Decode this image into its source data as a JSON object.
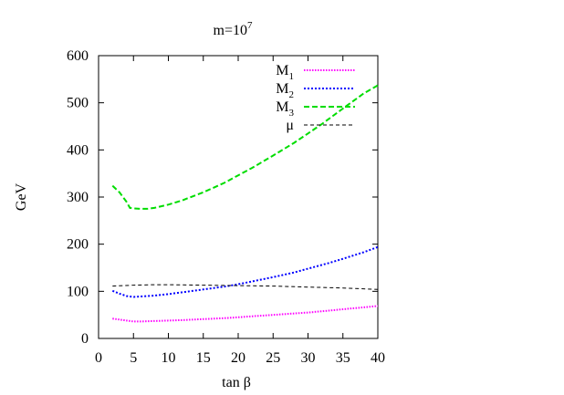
{
  "chart_data": {
    "type": "line",
    "title": {
      "text": "m=10",
      "sup": "7"
    },
    "xlabel": "tan β",
    "ylabel": "GeV",
    "xlim": [
      0,
      40
    ],
    "ylim": [
      0,
      600
    ],
    "xticks": [
      0,
      5,
      10,
      15,
      20,
      25,
      30,
      35,
      40
    ],
    "yticks": [
      0,
      100,
      200,
      300,
      400,
      500,
      600
    ],
    "grid": false,
    "legend_position": "top-right",
    "series": [
      {
        "name": "M",
        "sub": "1",
        "color": "#ff00ff",
        "dash": "dotted-fine",
        "x": [
          2,
          3,
          4,
          5,
          6,
          8,
          10,
          12,
          15,
          18,
          20,
          22,
          25,
          28,
          30,
          33,
          35,
          38,
          40
        ],
        "y": [
          42,
          40,
          38,
          36,
          36,
          37,
          38,
          39,
          41,
          43,
          45,
          47,
          50,
          53,
          55,
          59,
          62,
          66,
          69
        ]
      },
      {
        "name": "M",
        "sub": "2",
        "color": "#0000ff",
        "dash": "dotted",
        "x": [
          2,
          3,
          4,
          5,
          6,
          8,
          10,
          12,
          15,
          18,
          20,
          22,
          25,
          28,
          30,
          33,
          35,
          38,
          40
        ],
        "y": [
          101,
          95,
          90,
          88,
          89,
          91,
          94,
          98,
          104,
          110,
          115,
          121,
          130,
          140,
          148,
          160,
          169,
          183,
          194
        ]
      },
      {
        "name": "M",
        "sub": "3",
        "color": "#00dd00",
        "dash": "dashed",
        "x": [
          2,
          3,
          4,
          4.5,
          5,
          6,
          7,
          8,
          10,
          12,
          15,
          18,
          20,
          22,
          25,
          28,
          30,
          32,
          35,
          38,
          40
        ],
        "y": [
          324,
          310,
          290,
          277,
          276,
          275,
          275,
          277,
          284,
          293,
          310,
          330,
          346,
          362,
          388,
          415,
          435,
          455,
          488,
          520,
          537
        ]
      },
      {
        "name": "μ",
        "sub": "",
        "color": "#000000",
        "dash": "dashed-fine",
        "x": [
          2,
          5,
          8,
          10,
          15,
          20,
          25,
          30,
          35,
          40
        ],
        "y": [
          111,
          113,
          114,
          114,
          113,
          112,
          111,
          109,
          107,
          104
        ]
      }
    ]
  }
}
